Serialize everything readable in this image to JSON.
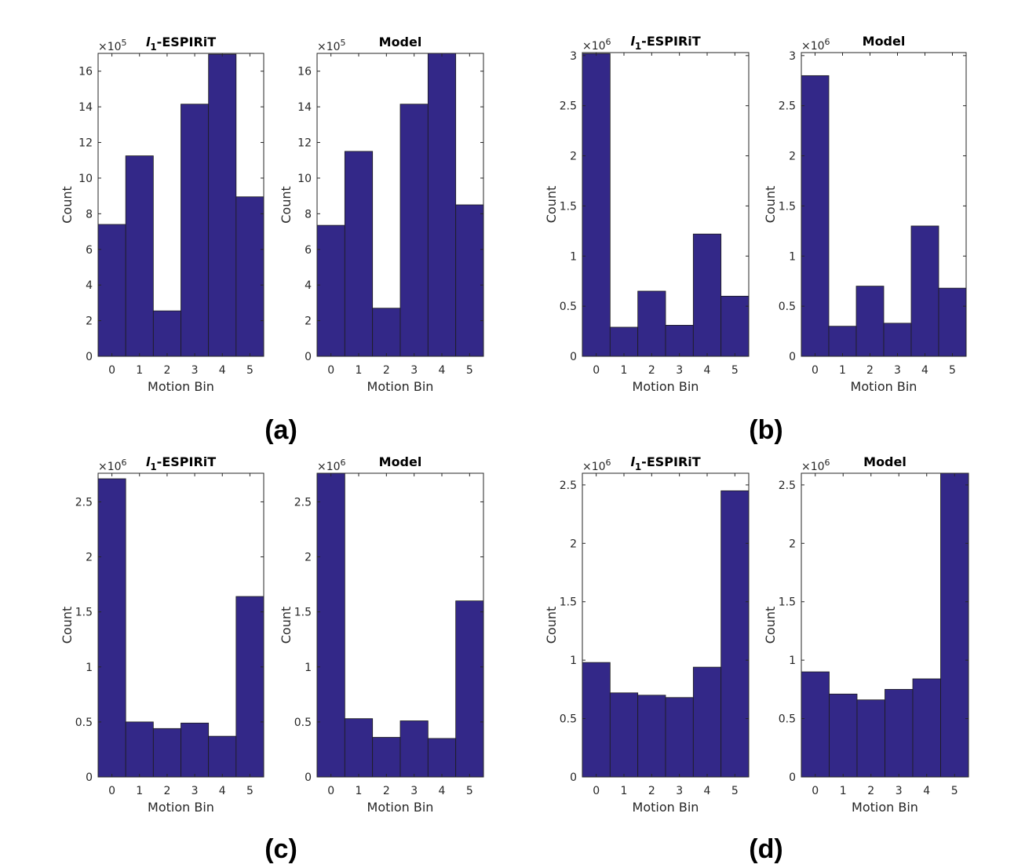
{
  "colors": {
    "bar": "#332888",
    "bar_edge": "#1c1c1c",
    "axis": "#262626"
  },
  "panels": [
    {
      "label": "(a)"
    },
    {
      "label": "(b)"
    },
    {
      "label": "(c)"
    },
    {
      "label": "(d)"
    }
  ],
  "chart_data": [
    {
      "panel": "(a)",
      "type": "bar",
      "title": "l1-ESPIRiT",
      "title_italic_prefix": "l",
      "title_subscript": "1",
      "title_rest": "-ESPIRiT",
      "xlabel": "Motion Bin",
      "ylabel": "Count",
      "exponent_base": "×10",
      "exponent_power": "5",
      "categories": [
        "0",
        "1",
        "2",
        "3",
        "4",
        "5"
      ],
      "values": [
        7.4,
        11.25,
        2.55,
        14.15,
        16.95,
        8.95
      ],
      "ylim": [
        0,
        17
      ],
      "yticks": [
        0,
        2,
        4,
        6,
        8,
        10,
        12,
        14,
        16
      ],
      "ytick_labels": [
        "0",
        "2",
        "4",
        "6",
        "8",
        "10",
        "12",
        "14",
        "16"
      ]
    },
    {
      "panel": "(a)",
      "type": "bar",
      "title": "Model",
      "xlabel": "Motion Bin",
      "ylabel": "Count",
      "exponent_base": "×10",
      "exponent_power": "5",
      "categories": [
        "0",
        "1",
        "2",
        "3",
        "4",
        "5"
      ],
      "values": [
        7.35,
        11.5,
        2.7,
        14.15,
        17.05,
        8.5
      ],
      "ylim": [
        0,
        17
      ],
      "yticks": [
        0,
        2,
        4,
        6,
        8,
        10,
        12,
        14,
        16
      ],
      "ytick_labels": [
        "0",
        "2",
        "4",
        "6",
        "8",
        "10",
        "12",
        "14",
        "16"
      ]
    },
    {
      "panel": "(b)",
      "type": "bar",
      "title": "l1-ESPIRiT",
      "title_italic_prefix": "l",
      "title_subscript": "1",
      "title_rest": "-ESPIRiT",
      "xlabel": "Motion Bin",
      "ylabel": "Count",
      "exponent_base": "×10",
      "exponent_power": "6",
      "categories": [
        "0",
        "1",
        "2",
        "3",
        "4",
        "5"
      ],
      "values": [
        3.02,
        0.29,
        0.65,
        0.31,
        1.22,
        0.6
      ],
      "ylim": [
        0,
        3.03
      ],
      "yticks": [
        0,
        0.5,
        1,
        1.5,
        2,
        2.5,
        3
      ],
      "ytick_labels": [
        "0",
        "0.5",
        "1",
        "1.5",
        "2",
        "2.5",
        "3"
      ]
    },
    {
      "panel": "(b)",
      "type": "bar",
      "title": "Model",
      "xlabel": "Motion Bin",
      "ylabel": "Count",
      "exponent_base": "×10",
      "exponent_power": "6",
      "categories": [
        "0",
        "1",
        "2",
        "3",
        "4",
        "5"
      ],
      "values": [
        2.8,
        0.3,
        0.7,
        0.33,
        1.3,
        0.68
      ],
      "ylim": [
        0,
        3.03
      ],
      "yticks": [
        0,
        0.5,
        1,
        1.5,
        2,
        2.5,
        3
      ],
      "ytick_labels": [
        "0",
        "0.5",
        "1",
        "1.5",
        "2",
        "2.5",
        "3"
      ]
    },
    {
      "panel": "(c)",
      "type": "bar",
      "title": "l1-ESPIRiT",
      "title_italic_prefix": "l",
      "title_subscript": "1",
      "title_rest": "-ESPIRiT",
      "xlabel": "Motion Bin",
      "ylabel": "Count",
      "exponent_base": "×10",
      "exponent_power": "6",
      "categories": [
        "0",
        "1",
        "2",
        "3",
        "4",
        "5"
      ],
      "values": [
        2.71,
        0.5,
        0.44,
        0.49,
        0.37,
        1.64
      ],
      "ylim": [
        0,
        2.76
      ],
      "yticks": [
        0,
        0.5,
        1,
        1.5,
        2,
        2.5
      ],
      "ytick_labels": [
        "0",
        "0.5",
        "1",
        "1.5",
        "2",
        "2.5"
      ]
    },
    {
      "panel": "(c)",
      "type": "bar",
      "title": "Model",
      "xlabel": "Motion Bin",
      "ylabel": "Count",
      "exponent_base": "×10",
      "exponent_power": "6",
      "categories": [
        "0",
        "1",
        "2",
        "3",
        "4",
        "5"
      ],
      "values": [
        2.76,
        0.53,
        0.36,
        0.51,
        0.35,
        1.6
      ],
      "ylim": [
        0,
        2.76
      ],
      "yticks": [
        0,
        0.5,
        1,
        1.5,
        2,
        2.5
      ],
      "ytick_labels": [
        "0",
        "0.5",
        "1",
        "1.5",
        "2",
        "2.5"
      ]
    },
    {
      "panel": "(d)",
      "type": "bar",
      "title": "l1-ESPIRiT",
      "title_italic_prefix": "l",
      "title_subscript": "1",
      "title_rest": "-ESPIRiT",
      "xlabel": "Motion Bin",
      "ylabel": "Count",
      "exponent_base": "×10",
      "exponent_power": "6",
      "categories": [
        "0",
        "1",
        "2",
        "3",
        "4",
        "5"
      ],
      "values": [
        0.98,
        0.72,
        0.7,
        0.68,
        0.94,
        2.45
      ],
      "ylim": [
        0,
        2.6
      ],
      "yticks": [
        0,
        0.5,
        1,
        1.5,
        2,
        2.5
      ],
      "ytick_labels": [
        "0",
        "0.5",
        "1",
        "1.5",
        "2",
        "2.5"
      ]
    },
    {
      "panel": "(d)",
      "type": "bar",
      "title": "Model",
      "xlabel": "Motion Bin",
      "ylabel": "Count",
      "exponent_base": "×10",
      "exponent_power": "6",
      "categories": [
        "0",
        "1",
        "2",
        "3",
        "4",
        "5"
      ],
      "values": [
        0.9,
        0.71,
        0.66,
        0.75,
        0.84,
        2.6
      ],
      "ylim": [
        0,
        2.6
      ],
      "yticks": [
        0,
        0.5,
        1,
        1.5,
        2,
        2.5
      ],
      "ytick_labels": [
        "0",
        "0.5",
        "1",
        "1.5",
        "2",
        "2.5"
      ]
    }
  ]
}
